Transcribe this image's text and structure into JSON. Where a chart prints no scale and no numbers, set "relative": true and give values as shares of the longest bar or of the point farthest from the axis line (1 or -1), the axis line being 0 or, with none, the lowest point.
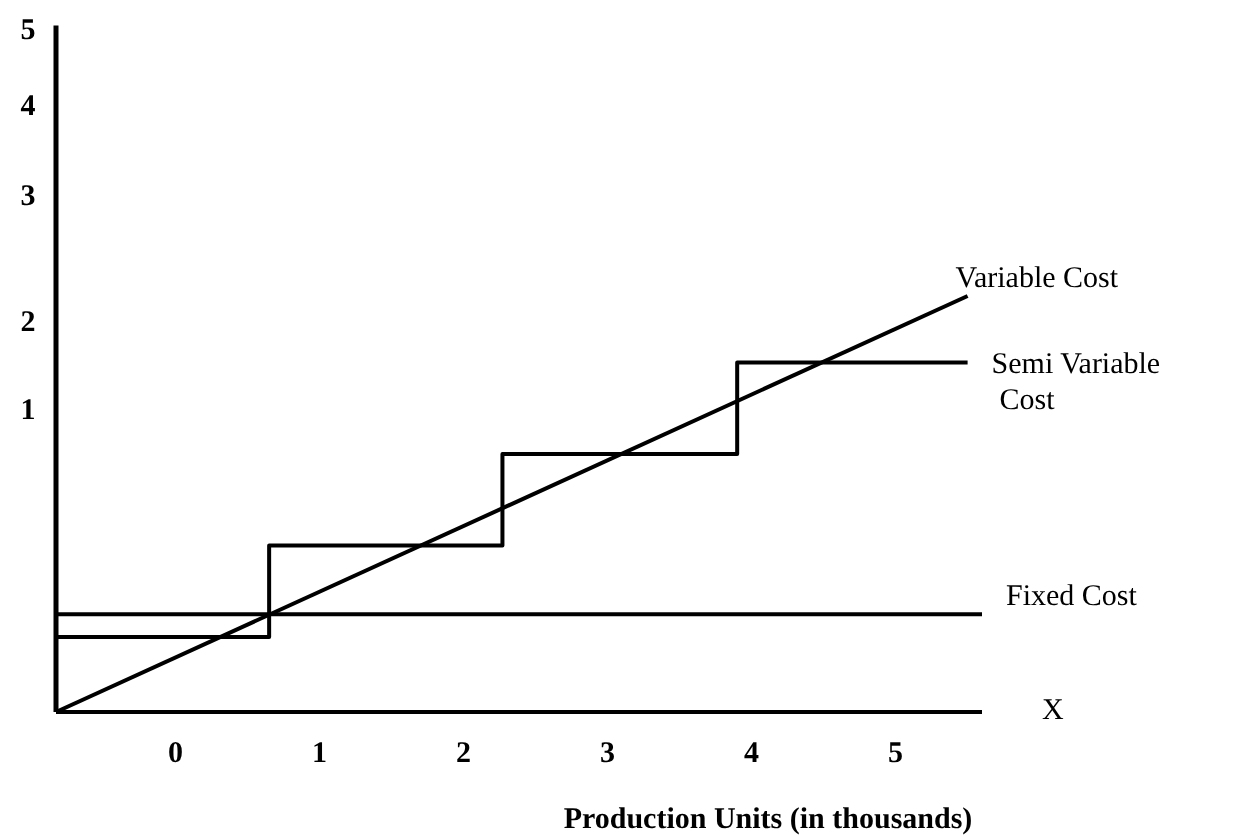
{
  "chart_data": {
    "type": "line",
    "xlabel": "Production Units (in thousands)",
    "relative": true,
    "xlim": [
      -0.83,
      5.6
    ],
    "xticks": [
      0,
      1,
      2,
      3,
      4,
      5
    ],
    "series": [
      {
        "name": "Variable Cost",
        "color": "#000000",
        "x": [
          -0.83,
          5.5
        ],
        "values": [
          0,
          1
        ]
      },
      {
        "name": "Semi Variable Cost",
        "type": "step",
        "color": "#000000",
        "x": [
          -0.83,
          0.65,
          2.27,
          3.9,
          5.5
        ],
        "values": [
          0.18,
          0.4,
          0.62,
          0.84,
          0.84
        ]
      },
      {
        "name": "Fixed Cost",
        "color": "#000000",
        "x": [
          -0.83,
          5.6
        ],
        "values": [
          0.235,
          0.235
        ]
      }
    ],
    "annotations": [
      "1",
      "2",
      "3",
      "4",
      "5",
      "X"
    ],
    "grid": false,
    "marker": "none",
    "line_style": "solid"
  }
}
